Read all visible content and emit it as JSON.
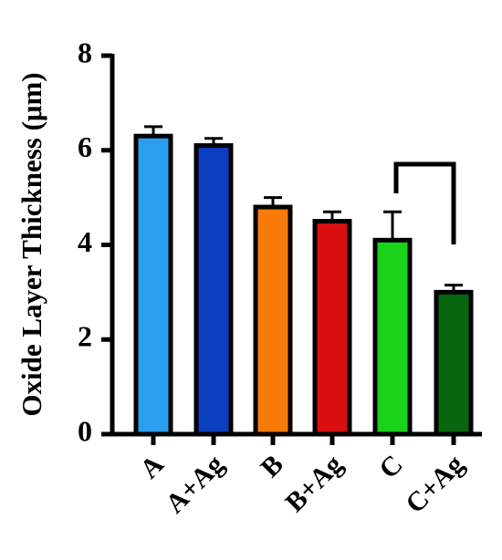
{
  "chart_data": {
    "type": "bar",
    "ylabel": "Oxide Layer Thickness (μm)",
    "categories": [
      "A",
      "A+Ag",
      "B",
      "B+Ag",
      "C",
      "C+Ag"
    ],
    "values": [
      6.3,
      6.1,
      4.8,
      4.5,
      4.1,
      3.0
    ],
    "errors": [
      0.2,
      0.15,
      0.2,
      0.2,
      0.6,
      0.15
    ],
    "colors": [
      "#2a9ff0",
      "#0b3fc0",
      "#f77a0a",
      "#d90f0f",
      "#19d219",
      "#08670e"
    ],
    "ylim": [
      0,
      8
    ],
    "yticks": [
      0,
      2,
      4,
      6,
      8
    ]
  }
}
